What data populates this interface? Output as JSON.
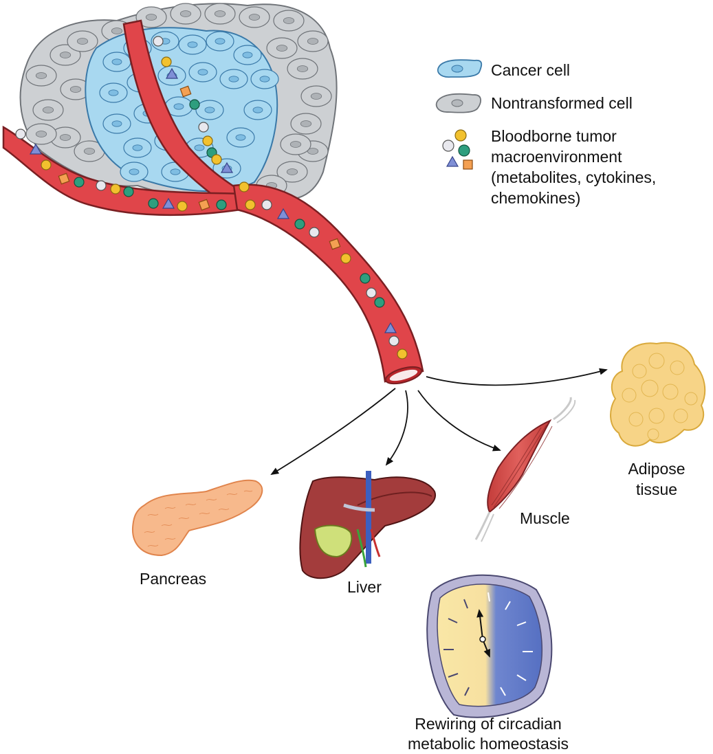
{
  "legend": {
    "cancer_cell": "Cancer cell",
    "nontransformed_cell": "Nontransformed cell",
    "bloodborne_line1": "Bloodborne tumor",
    "bloodborne_line2": "macroenvironment",
    "bloodborne_line3": "(metabolites, cytokines,",
    "bloodborne_line4": "chemokines)"
  },
  "organs": {
    "pancreas": "Pancreas",
    "liver": "Liver",
    "muscle": "Muscle",
    "adipose_line1": "Adipose",
    "adipose_line2": "tissue"
  },
  "circadian": {
    "line1": "Rewiring of circadian",
    "line2": "metabolic homeostasis"
  },
  "colors": {
    "cancer_cell": "#a8d8f0",
    "nontransformed_cell": "#cdd0d3",
    "vessel": "#e0454a",
    "vessel_outline": "#7a1f22",
    "metabolite_yellow": "#f2c12e",
    "metabolite_white": "#e8e8ee",
    "metabolite_green": "#2e9e7e",
    "metabolite_blue": "#7f8fd6",
    "metabolite_orange": "#f4a052",
    "pancreas": "#f7b98c",
    "liver": "#a33c3c",
    "muscle": "#d9514f",
    "adipose": "#f7d487",
    "clock_day": "#f7e3a0",
    "clock_night": "#5a73c4"
  }
}
